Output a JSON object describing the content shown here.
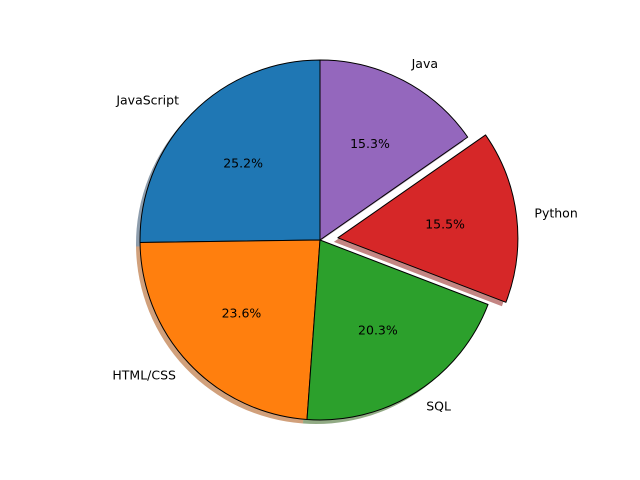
{
  "chart_data": {
    "type": "pie",
    "title": "",
    "start_angle_deg": 90,
    "direction": "counterclockwise",
    "shadow": true,
    "explode_label": "Python",
    "legend": "none",
    "slices": [
      {
        "label": "JavaScript",
        "pct_label": "25.2%",
        "value": 25.2,
        "color": "#1f77b4"
      },
      {
        "label": "HTML/CSS",
        "pct_label": "23.6%",
        "value": 23.6,
        "color": "#ff7f0e"
      },
      {
        "label": "SQL",
        "pct_label": "20.3%",
        "value": 20.3,
        "color": "#2ca02c"
      },
      {
        "label": "Python",
        "pct_label": "15.5%",
        "value": 15.5,
        "color": "#d62728"
      },
      {
        "label": "Java",
        "pct_label": "15.3%",
        "value": 15.3,
        "color": "#9467bd"
      }
    ]
  }
}
